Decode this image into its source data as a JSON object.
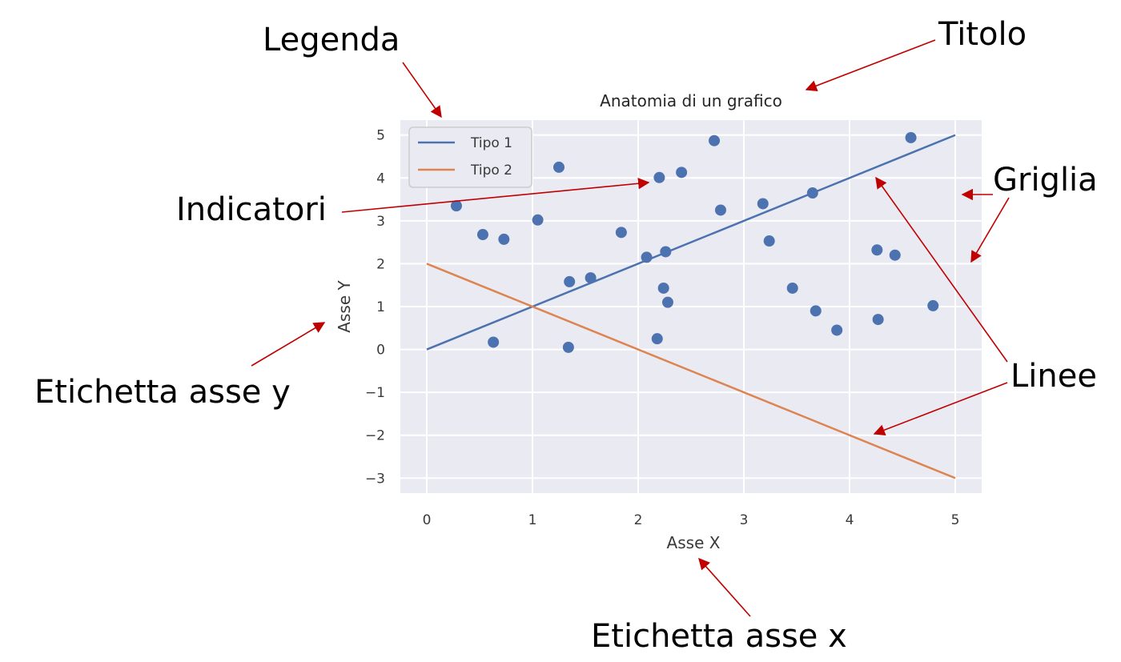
{
  "annotations": {
    "legend": "Legenda",
    "title": "Titolo",
    "markers": "Indicatori",
    "grid": "Griglia",
    "lines": "Linee",
    "ylabel": "Etichetta asse y",
    "xlabel": "Etichetta asse x"
  },
  "annotation_color": "#c00000",
  "chart_data": {
    "type": "scatter",
    "title": "Anatomia di un grafico",
    "xlabel": "Asse X",
    "ylabel": "Asse Y",
    "xlim": [
      -0.25,
      5.25
    ],
    "ylim": [
      -3.35,
      5.35
    ],
    "xticks": [
      0,
      1,
      2,
      3,
      4,
      5
    ],
    "xtick_labels": [
      "0",
      "1",
      "2",
      "3",
      "4",
      "5"
    ],
    "yticks": [
      5,
      4,
      3,
      2,
      1,
      0,
      -1,
      -2,
      -3
    ],
    "ytick_labels": [
      "5",
      "4",
      "3",
      "2",
      "1",
      "0",
      "−1",
      "−2",
      "−3"
    ],
    "grid": true,
    "background": "#eaeaf2",
    "legend_position": "top-left",
    "lines": [
      {
        "name": "Tipo 1",
        "color": "#4c72b0",
        "x": [
          0,
          5
        ],
        "y": [
          0,
          5
        ]
      },
      {
        "name": "Tipo 2",
        "color": "#dd8452",
        "x": [
          0,
          5
        ],
        "y": [
          2,
          -3
        ]
      }
    ],
    "scatter": {
      "color": "#4c72b0",
      "points": [
        [
          0.28,
          3.35
        ],
        [
          0.53,
          2.68
        ],
        [
          0.63,
          0.17
        ],
        [
          0.73,
          2.57
        ],
        [
          1.05,
          3.02
        ],
        [
          1.25,
          4.25
        ],
        [
          1.34,
          0.05
        ],
        [
          1.35,
          1.58
        ],
        [
          1.55,
          1.67
        ],
        [
          1.84,
          2.73
        ],
        [
          2.08,
          2.15
        ],
        [
          2.18,
          0.25
        ],
        [
          2.2,
          4.01
        ],
        [
          2.24,
          1.43
        ],
        [
          2.26,
          2.28
        ],
        [
          2.28,
          1.1
        ],
        [
          2.41,
          4.13
        ],
        [
          2.72,
          4.87
        ],
        [
          2.78,
          3.25
        ],
        [
          3.18,
          3.4
        ],
        [
          3.24,
          2.53
        ],
        [
          3.46,
          1.43
        ],
        [
          3.65,
          3.65
        ],
        [
          3.68,
          0.9
        ],
        [
          3.88,
          0.45
        ],
        [
          4.26,
          2.32
        ],
        [
          4.27,
          0.7
        ],
        [
          4.43,
          2.2
        ],
        [
          4.58,
          4.94
        ],
        [
          4.79,
          1.02
        ]
      ]
    }
  }
}
